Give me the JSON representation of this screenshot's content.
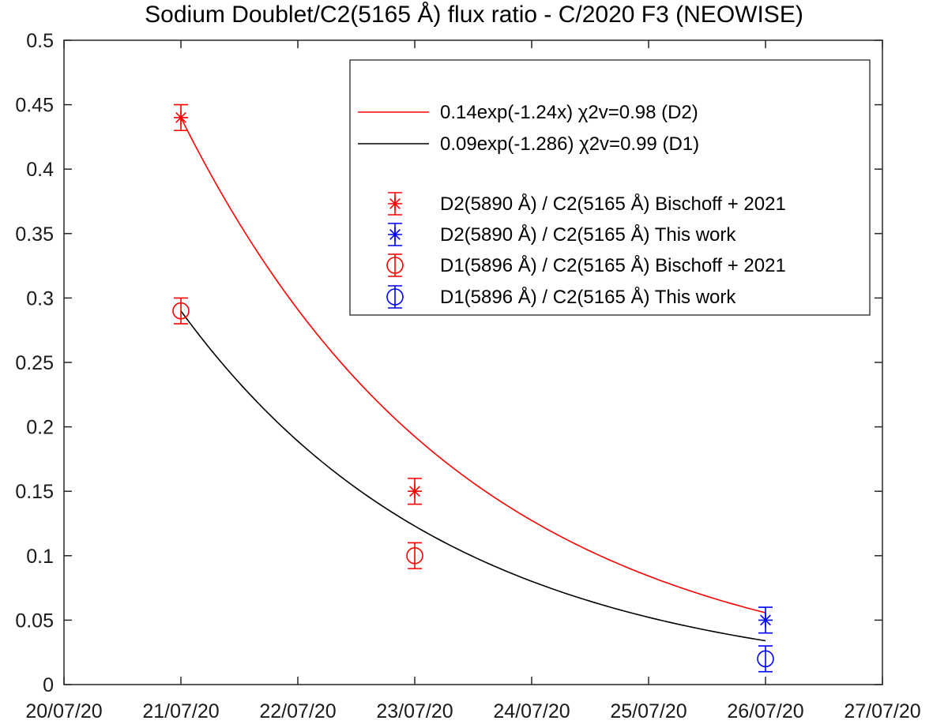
{
  "chart_data": {
    "type": "scatter",
    "title": "Sodium Doublet/C2(5165 Å) flux ratio - C/2020 F3 (NEOWISE)",
    "xlabel": "",
    "ylabel": "",
    "x_ticks": [
      "20/07/20",
      "21/07/20",
      "22/07/20",
      "23/07/20",
      "24/07/20",
      "25/07/20",
      "26/07/20",
      "27/07/20"
    ],
    "x_tick_values": [
      "2020-07-20",
      "2020-07-21",
      "2020-07-22",
      "2020-07-23",
      "2020-07-24",
      "2020-07-25",
      "2020-07-26",
      "2020-07-27"
    ],
    "xlim": [
      "2020-07-20",
      "2020-07-27"
    ],
    "y_ticks": [
      "0",
      "0.05",
      "0.1",
      "0.15",
      "0.2",
      "0.25",
      "0.3",
      "0.35",
      "0.4",
      "0.45",
      "0.5"
    ],
    "y_tick_values": [
      0,
      0.05,
      0.1,
      0.15,
      0.2,
      0.25,
      0.3,
      0.35,
      0.4,
      0.45,
      0.5
    ],
    "ylim": [
      0,
      0.5
    ],
    "grid": false,
    "legend_position": "top-right",
    "fits": [
      {
        "label": "0.14exp(-1.24x) χ2v=0.98 (D2)",
        "color": "#ff0000",
        "amplitude": 0.44,
        "rate": 0.4133,
        "x_start": "2020-07-21",
        "x_end": "2020-07-26"
      },
      {
        "label": "0.09exp(-1.286) χ2v=0.99 (D1)",
        "color": "#000000",
        "amplitude": 0.29,
        "rate": 0.4287,
        "x_start": "2020-07-21",
        "x_end": "2020-07-26"
      }
    ],
    "series": [
      {
        "name": "D2(5890 Å) / C2(5165 Å) Bischoff + 2021",
        "marker": "asterisk",
        "color": "#ff0000",
        "points": [
          {
            "x": "2020-07-21",
            "y": 0.44,
            "err": 0.01
          },
          {
            "x": "2020-07-23",
            "y": 0.15,
            "err": 0.01
          }
        ]
      },
      {
        "name": "D2(5890 Å) / C2(5165 Å) This work",
        "marker": "asterisk",
        "color": "#0000ff",
        "points": [
          {
            "x": "2020-07-26",
            "y": 0.05,
            "err": 0.01
          }
        ]
      },
      {
        "name": "D1(5896 Å) / C2(5165 Å) Bischoff + 2021",
        "marker": "circle",
        "color": "#ff0000",
        "points": [
          {
            "x": "2020-07-21",
            "y": 0.29,
            "err": 0.01
          },
          {
            "x": "2020-07-23",
            "y": 0.1,
            "err": 0.01
          }
        ]
      },
      {
        "name": "D1(5896 Å) / C2(5165 Å) This work",
        "marker": "circle",
        "color": "#0000ff",
        "points": [
          {
            "x": "2020-07-26",
            "y": 0.02,
            "err": 0.01
          }
        ]
      }
    ]
  }
}
